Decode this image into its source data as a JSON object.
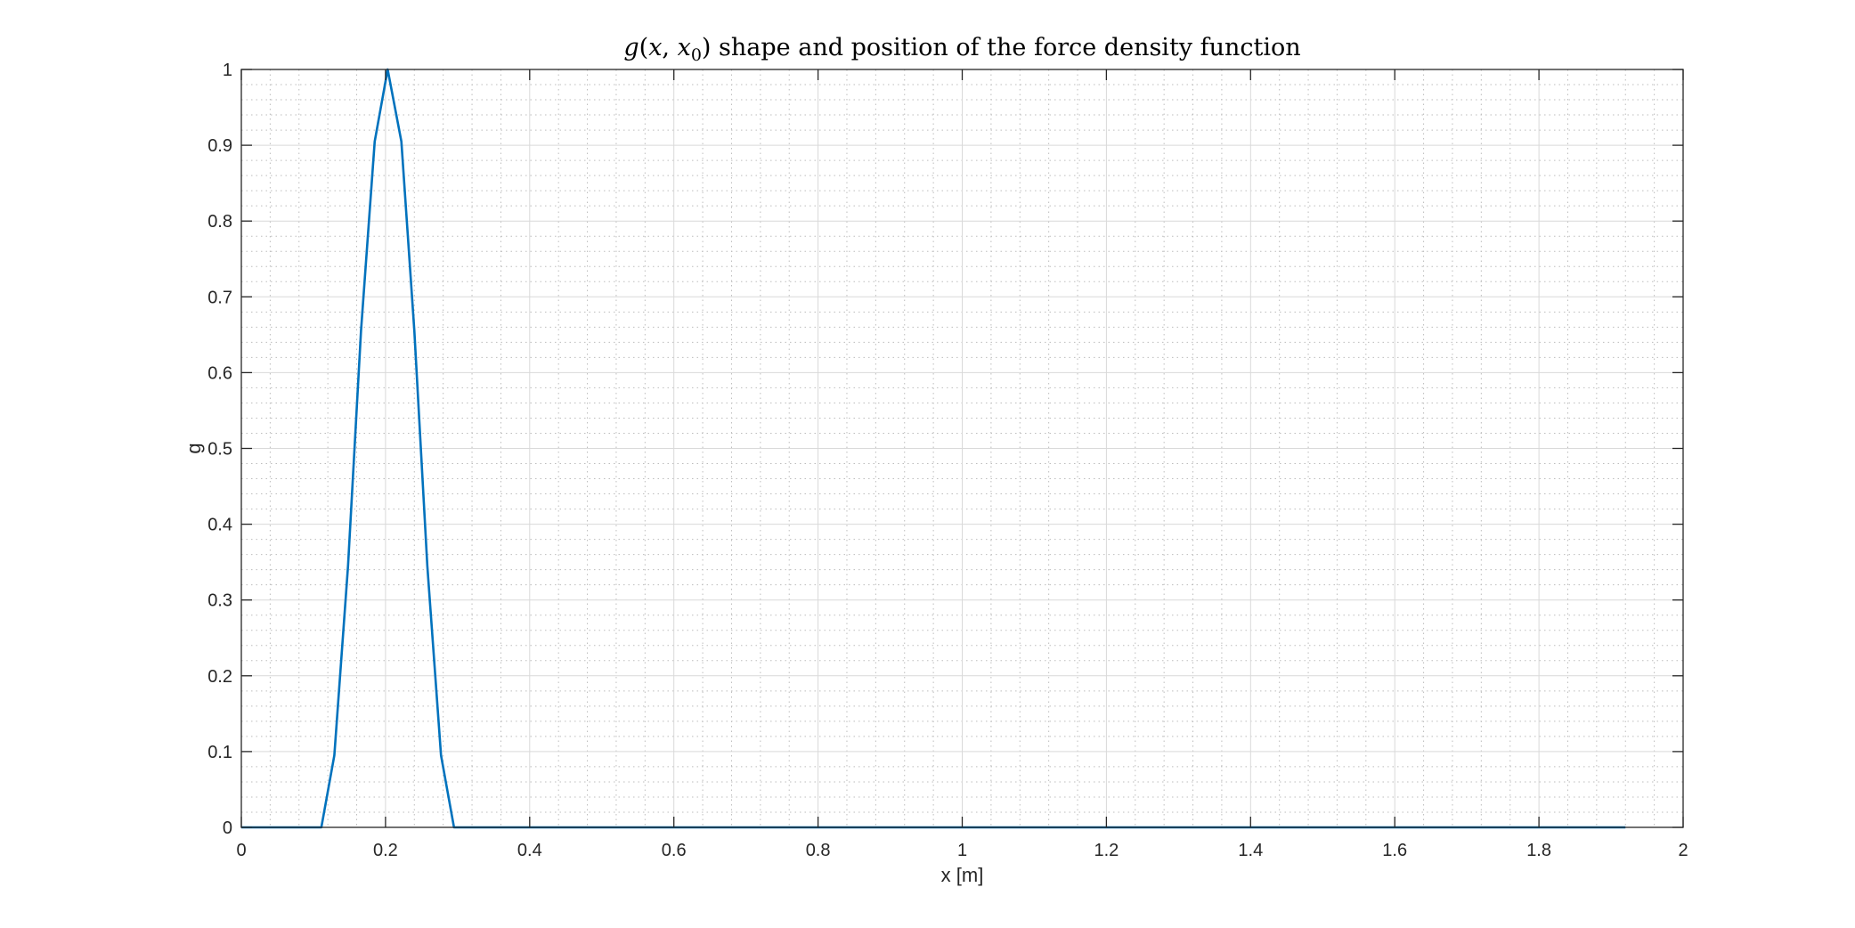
{
  "chart_data": {
    "type": "line",
    "title": "g(x, x0) shape and position of the force density function",
    "xlabel": "x [m]",
    "ylabel": "g",
    "xlim": [
      0,
      2
    ],
    "ylim": [
      0,
      1
    ],
    "xticks": [
      0,
      0.2,
      0.4,
      0.6,
      0.8,
      1,
      1.2,
      1.4,
      1.6,
      1.8,
      2
    ],
    "xtick_labels": [
      "0",
      "0.2",
      "0.4",
      "0.6",
      "0.8",
      "1",
      "1.2",
      "1.4",
      "1.6",
      "1.8",
      "2"
    ],
    "yticks": [
      0,
      0.1,
      0.2,
      0.3,
      0.4,
      0.5,
      0.6,
      0.7,
      0.8,
      0.9,
      1
    ],
    "ytick_labels": [
      "0",
      "0.1",
      "0.2",
      "0.3",
      "0.4",
      "0.5",
      "0.6",
      "0.7",
      "0.8",
      "0.9",
      "1"
    ],
    "grid": true,
    "minor_grid": true,
    "series": [
      {
        "color": "#0072BD",
        "x": [
          0,
          0.111,
          0.129,
          0.148,
          0.166,
          0.185,
          0.203,
          0.222,
          0.24,
          0.258,
          0.277,
          0.295,
          1.92
        ],
        "y": [
          0,
          0,
          0.095,
          0.345,
          0.655,
          0.905,
          1.0,
          0.905,
          0.655,
          0.345,
          0.095,
          0,
          0
        ]
      }
    ]
  }
}
